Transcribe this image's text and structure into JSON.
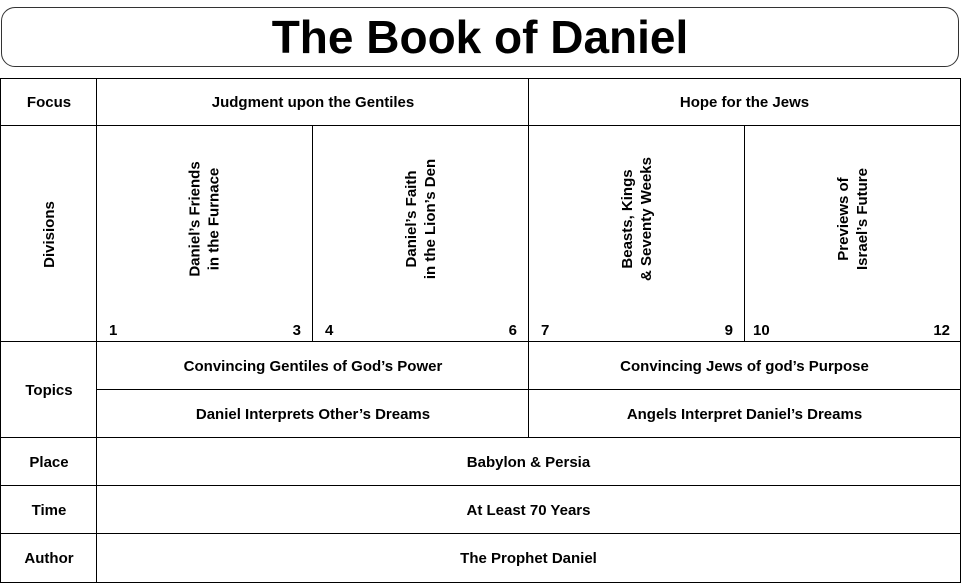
{
  "title": "The Book of Daniel",
  "rows": {
    "focus": "Focus",
    "divisions": "Divisions",
    "topics": "Topics",
    "place": "Place",
    "time": "Time",
    "author": "Author"
  },
  "focus": [
    "Judgment upon the Gentiles",
    "Hope for the Jews"
  ],
  "divisions": [
    {
      "line1": "Daniel’s Friends",
      "line2": "in the Furnace",
      "start": "1",
      "end": "3"
    },
    {
      "line1": "Daniel’s Faith",
      "line2": "in the Lion’s Den",
      "start": "4",
      "end": "6"
    },
    {
      "line1": "Beasts, Kings",
      "line2": "& Seventy Weeks",
      "start": "7",
      "end": "9"
    },
    {
      "line1": "Previews of",
      "line2": "Israel’s Future",
      "start": "10",
      "end": "12"
    }
  ],
  "topics": [
    [
      "Convincing Gentiles of God’s Power",
      "Convincing Jews of god’s Purpose"
    ],
    [
      "Daniel Interprets Other’s Dreams",
      "Angels Interpret Daniel’s Dreams"
    ]
  ],
  "place": "Babylon & Persia",
  "time": "At Least 70 Years",
  "author": "The Prophet Daniel"
}
